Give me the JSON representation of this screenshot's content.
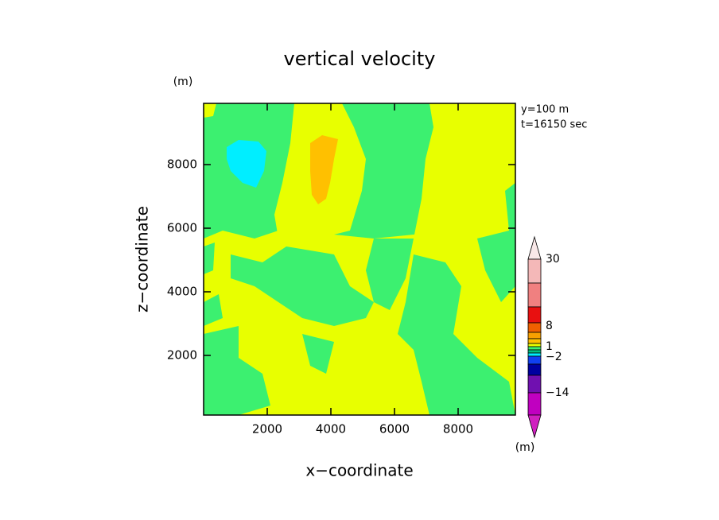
{
  "chart_data": {
    "type": "contour",
    "title": "vertical velocity",
    "xlabel": "x−coordinate",
    "ylabel": "z−coordinate",
    "y_unit": "(m)",
    "annotations": [
      "y=100 m",
      "t=16150 sec"
    ],
    "xlim": [
      0,
      9800
    ],
    "ylim": [
      125,
      9925
    ],
    "xticks": [
      2000,
      4000,
      6000,
      8000
    ],
    "yticks": [
      2000,
      4000,
      6000,
      8000
    ],
    "colorbar_labels": [
      "30",
      "8",
      "1",
      "−2",
      "−14"
    ],
    "colorbar_unit": "(m)"
  }
}
